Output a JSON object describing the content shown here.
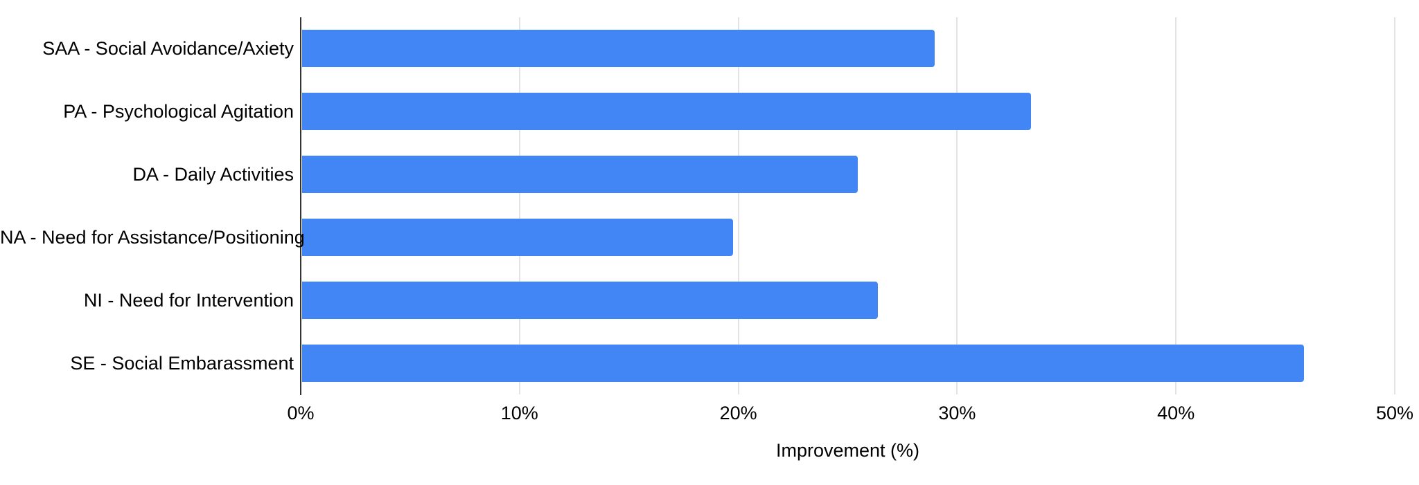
{
  "chart_data": {
    "type": "bar",
    "orientation": "horizontal",
    "title": "",
    "xlabel": "Improvement (%)",
    "ylabel": "",
    "categories": [
      "SAA - Social Avoidance/Axiety",
      "PA - Psychological Agitation",
      "DA - Daily Activities",
      "NA - Need for Assistance/Positioning",
      "NI - Need for Intervention",
      "SE - Social Embarassment"
    ],
    "values": [
      28.9,
      33.3,
      25.4,
      19.7,
      26.3,
      45.8
    ],
    "xlim": [
      0,
      50
    ],
    "xticks": [
      "0%",
      "10%",
      "20%",
      "30%",
      "40%",
      "50%"
    ],
    "xtick_values": [
      0,
      10,
      20,
      30,
      40,
      50
    ],
    "grid": true,
    "legend": false,
    "colors": {
      "bar": "#4285f4",
      "gridline": "#e3e3e3",
      "axis_line": "#333333",
      "text": "#000000",
      "background": "#ffffff"
    }
  }
}
